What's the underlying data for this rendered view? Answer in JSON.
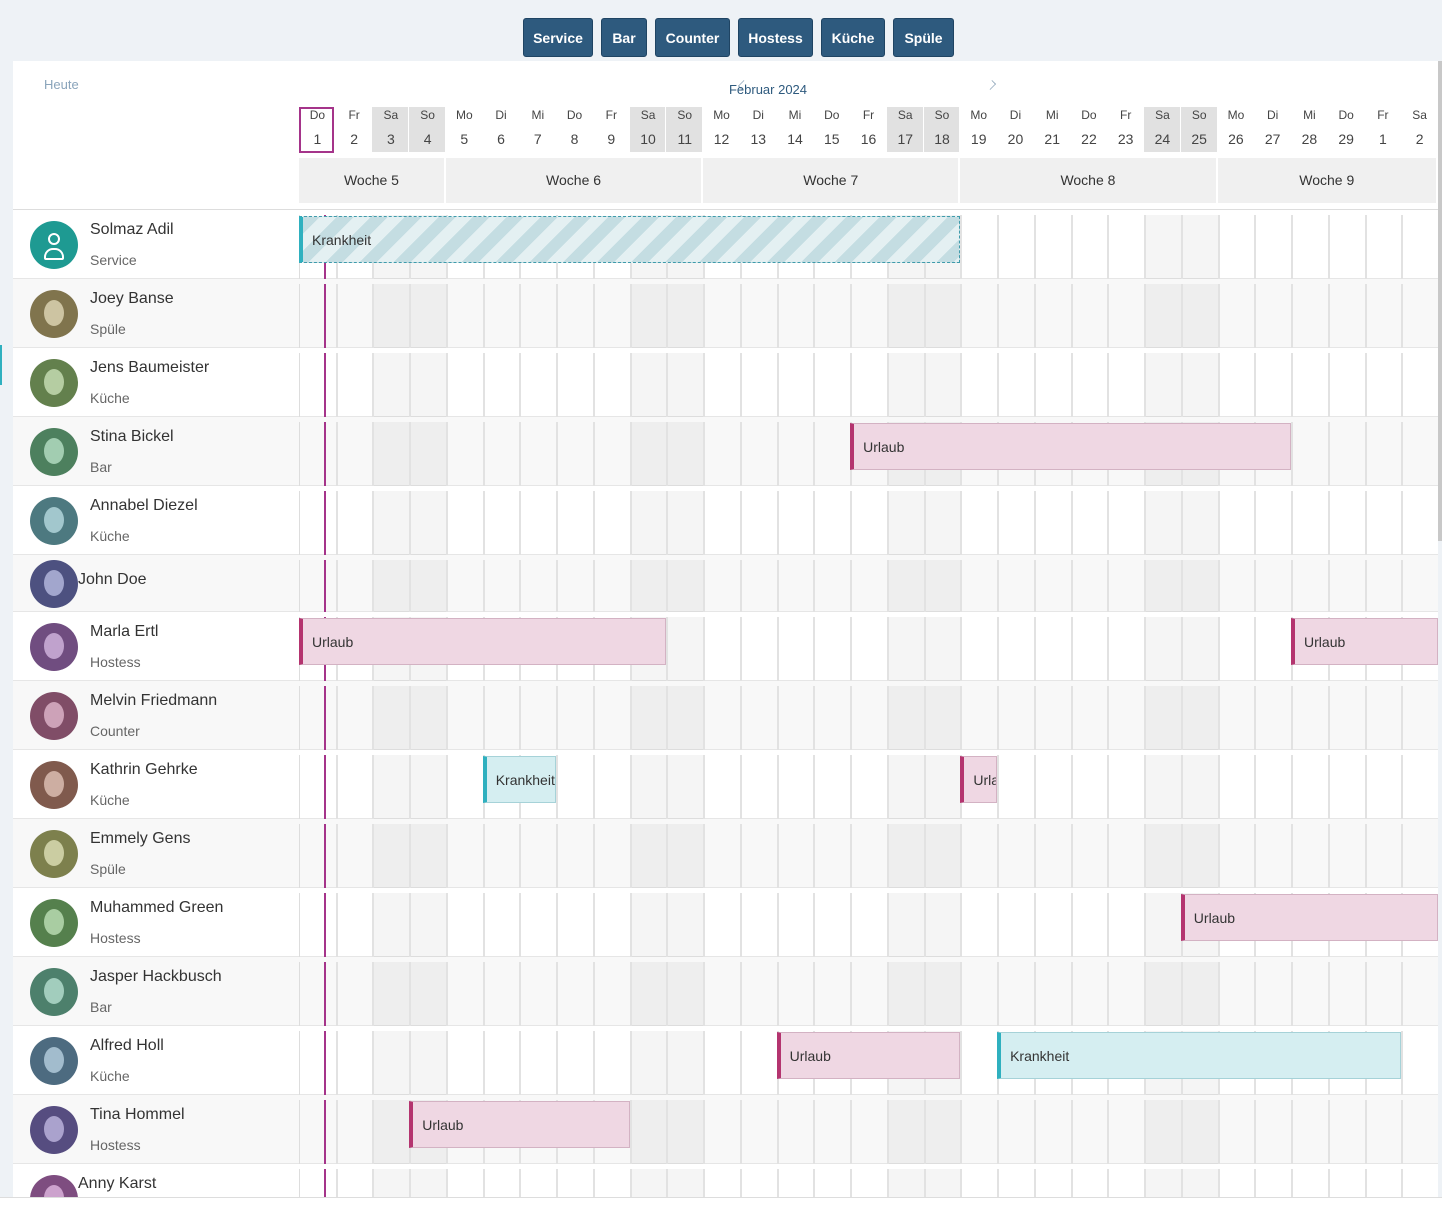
{
  "filters": [
    "Service",
    "Bar",
    "Counter",
    "Hostess",
    "Küche",
    "Spüle"
  ],
  "today_button": "Heute",
  "month": "Februar 2024",
  "days": [
    {
      "weekday": "Do",
      "day": 1
    },
    {
      "weekday": "Fr",
      "day": 2
    },
    {
      "weekday": "Sa",
      "day": 3,
      "weekend": true
    },
    {
      "weekday": "So",
      "day": 4,
      "weekend": true
    },
    {
      "weekday": "Mo",
      "day": 5
    },
    {
      "weekday": "Di",
      "day": 6
    },
    {
      "weekday": "Mi",
      "day": 7
    },
    {
      "weekday": "Do",
      "day": 8
    },
    {
      "weekday": "Fr",
      "day": 9
    },
    {
      "weekday": "Sa",
      "day": 10,
      "weekend": true
    },
    {
      "weekday": "So",
      "day": 11,
      "weekend": true
    },
    {
      "weekday": "Mo",
      "day": 12
    },
    {
      "weekday": "Di",
      "day": 13
    },
    {
      "weekday": "Mi",
      "day": 14
    },
    {
      "weekday": "Do",
      "day": 15
    },
    {
      "weekday": "Fr",
      "day": 16
    },
    {
      "weekday": "Sa",
      "day": 17,
      "weekend": true
    },
    {
      "weekday": "So",
      "day": 18,
      "weekend": true
    },
    {
      "weekday": "Mo",
      "day": 19
    },
    {
      "weekday": "Di",
      "day": 20
    },
    {
      "weekday": "Mi",
      "day": 21
    },
    {
      "weekday": "Do",
      "day": 22
    },
    {
      "weekday": "Fr",
      "day": 23
    },
    {
      "weekday": "Sa",
      "day": 24,
      "weekend": true
    },
    {
      "weekday": "So",
      "day": 25,
      "weekend": true
    },
    {
      "weekday": "Mo",
      "day": 26
    },
    {
      "weekday": "Di",
      "day": 27
    },
    {
      "weekday": "Mi",
      "day": 28
    },
    {
      "weekday": "Do",
      "day": 29
    },
    {
      "weekday": "Fr",
      "day": 1
    },
    {
      "weekday": "Sa",
      "day": 2
    }
  ],
  "weeks": [
    {
      "label": "Woche 5",
      "start": 0,
      "days": 4
    },
    {
      "label": "Woche 6",
      "start": 4,
      "days": 7
    },
    {
      "label": "Woche 7",
      "start": 11,
      "days": 7
    },
    {
      "label": "Woche 8",
      "start": 18,
      "days": 7
    },
    {
      "label": "Woche 9",
      "start": 25,
      "days": 6
    }
  ],
  "employees": [
    {
      "name": "Solmaz Adil",
      "role": "Service",
      "events": [
        {
          "label": "Krankheit",
          "kind": "sick-pending",
          "start": 0,
          "days": 18
        }
      ]
    },
    {
      "name": "Joey Banse",
      "role": "Spüle",
      "events": []
    },
    {
      "name": "Jens Baumeister",
      "role": "Küche",
      "events": []
    },
    {
      "name": "Stina Bickel",
      "role": "Bar",
      "events": [
        {
          "label": "Urlaub",
          "kind": "vacation",
          "start": 15,
          "days": 12
        }
      ]
    },
    {
      "name": "Annabel Diezel",
      "role": "Küche",
      "events": []
    },
    {
      "name": "John Doe",
      "events": []
    },
    {
      "name": "Marla Ertl",
      "role": "Hostess",
      "events": [
        {
          "label": "Urlaub",
          "kind": "vacation",
          "start": 0,
          "days": 10
        },
        {
          "label": "Urlaub",
          "kind": "vacation",
          "start": 27,
          "days": 4
        }
      ]
    },
    {
      "name": "Melvin Friedmann",
      "role": "Counter",
      "events": []
    },
    {
      "name": "Kathrin Gehrke",
      "role": "Küche",
      "events": [
        {
          "label": "Krankheit",
          "kind": "sick",
          "start": 5,
          "days": 2
        },
        {
          "label": "Urlaub",
          "kind": "vacation",
          "start": 18,
          "days": 1
        }
      ]
    },
    {
      "name": "Emmely Gens",
      "role": "Spüle",
      "events": []
    },
    {
      "name": "Muhammed Green",
      "role": "Hostess",
      "events": [
        {
          "label": "Urlaub",
          "kind": "vacation",
          "start": 24,
          "days": 7
        }
      ]
    },
    {
      "name": "Jasper Hackbusch",
      "role": "Bar",
      "events": []
    },
    {
      "name": "Alfred Holl",
      "role": "Küche",
      "events": [
        {
          "label": "Urlaub",
          "kind": "vacation",
          "start": 13,
          "days": 5
        },
        {
          "label": "Krankheit",
          "kind": "sick",
          "start": 19,
          "days": 11
        }
      ]
    },
    {
      "name": "Tina Hommel",
      "role": "Hostess",
      "events": [
        {
          "label": "Urlaub",
          "kind": "vacation",
          "start": 3,
          "days": 6
        }
      ]
    },
    {
      "name": "Anny Karst",
      "events": []
    }
  ]
}
